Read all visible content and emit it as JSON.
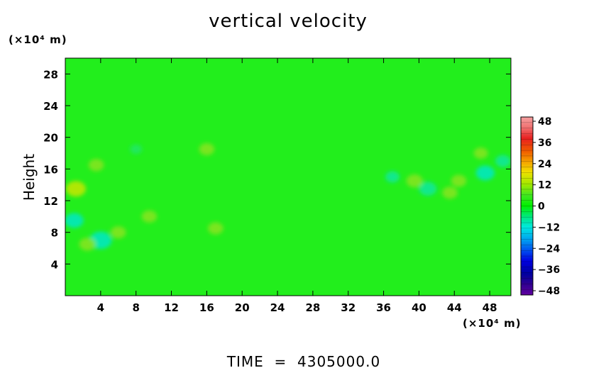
{
  "chart_data": {
    "type": "heatmap",
    "title": "vertical velocity",
    "ylabel": "Height",
    "x_unit": "(×10⁴ m)",
    "y_unit": "(×10⁴ m)",
    "x_ticks": [
      "4",
      "8",
      "12",
      "16",
      "20",
      "24",
      "28",
      "32",
      "36",
      "40",
      "44",
      "48"
    ],
    "y_ticks": [
      "4",
      "8",
      "12",
      "16",
      "20",
      "24",
      "28"
    ],
    "xlim": [
      0,
      50.4
    ],
    "ylim": [
      0,
      30
    ],
    "colorbar": {
      "ticks": [
        "48",
        "36",
        "24",
        "12",
        "0",
        "−12",
        "−24",
        "−36",
        "−48"
      ],
      "range": [
        -48,
        48
      ]
    },
    "field_background_value": 2,
    "anomalies": [
      {
        "x": 1.0,
        "y": 9.5,
        "value": -9
      },
      {
        "x": 4.0,
        "y": 7.0,
        "value": -12
      },
      {
        "x": 2.5,
        "y": 6.5,
        "value": 7
      },
      {
        "x": 1.2,
        "y": 13.5,
        "value": 10
      },
      {
        "x": 3.5,
        "y": 16.5,
        "value": 6
      },
      {
        "x": 6.0,
        "y": 8.0,
        "value": 6
      },
      {
        "x": 9.5,
        "y": 10.0,
        "value": 6
      },
      {
        "x": 16.0,
        "y": 18.5,
        "value": 6
      },
      {
        "x": 17.0,
        "y": 8.5,
        "value": 6
      },
      {
        "x": 8.0,
        "y": 18.5,
        "value": -3
      },
      {
        "x": 37.0,
        "y": 15.0,
        "value": -5
      },
      {
        "x": 41.0,
        "y": 13.5,
        "value": -8
      },
      {
        "x": 47.5,
        "y": 15.5,
        "value": -9
      },
      {
        "x": 44.5,
        "y": 14.5,
        "value": 6
      },
      {
        "x": 43.5,
        "y": 13.0,
        "value": 6
      },
      {
        "x": 39.5,
        "y": 14.5,
        "value": 7
      },
      {
        "x": 47.0,
        "y": 18.0,
        "value": 5
      },
      {
        "x": 49.5,
        "y": 17.0,
        "value": -6
      }
    ]
  },
  "footer": {
    "time_label": "TIME  =  4305000.0"
  }
}
